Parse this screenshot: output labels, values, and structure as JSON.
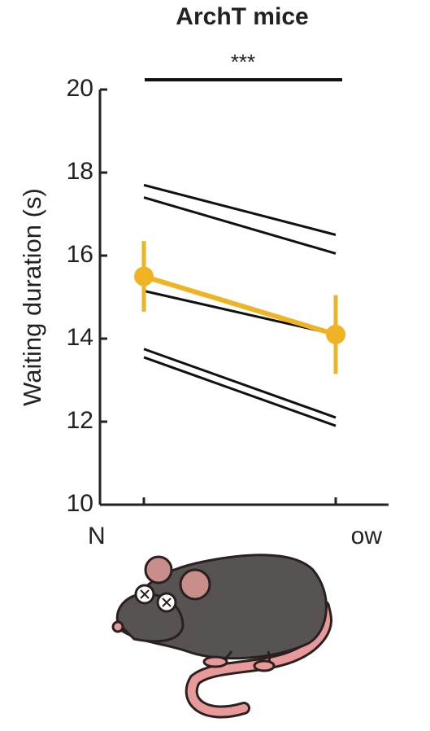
{
  "chart_data": {
    "type": "line",
    "title": "ArchT mice",
    "annotation": "***",
    "ylabel": "Waiting duration (s)",
    "categories": [
      "N",
      "ow"
    ],
    "ylim": [
      10,
      20
    ],
    "yticks": [
      10,
      12,
      14,
      16,
      18,
      20
    ],
    "series": [
      {
        "color": "#111111",
        "values": [
          17.7,
          16.5
        ]
      },
      {
        "color": "#111111",
        "values": [
          17.4,
          16.05
        ]
      },
      {
        "color": "#111111",
        "values": [
          15.15,
          14.1
        ]
      },
      {
        "color": "#111111",
        "values": [
          13.75,
          12.1
        ]
      },
      {
        "color": "#111111",
        "values": [
          13.55,
          11.9
        ]
      },
      {
        "color": "#f0b323",
        "values": [
          15.5,
          14.1
        ],
        "errors": [
          0.85,
          0.95
        ]
      }
    ]
  }
}
